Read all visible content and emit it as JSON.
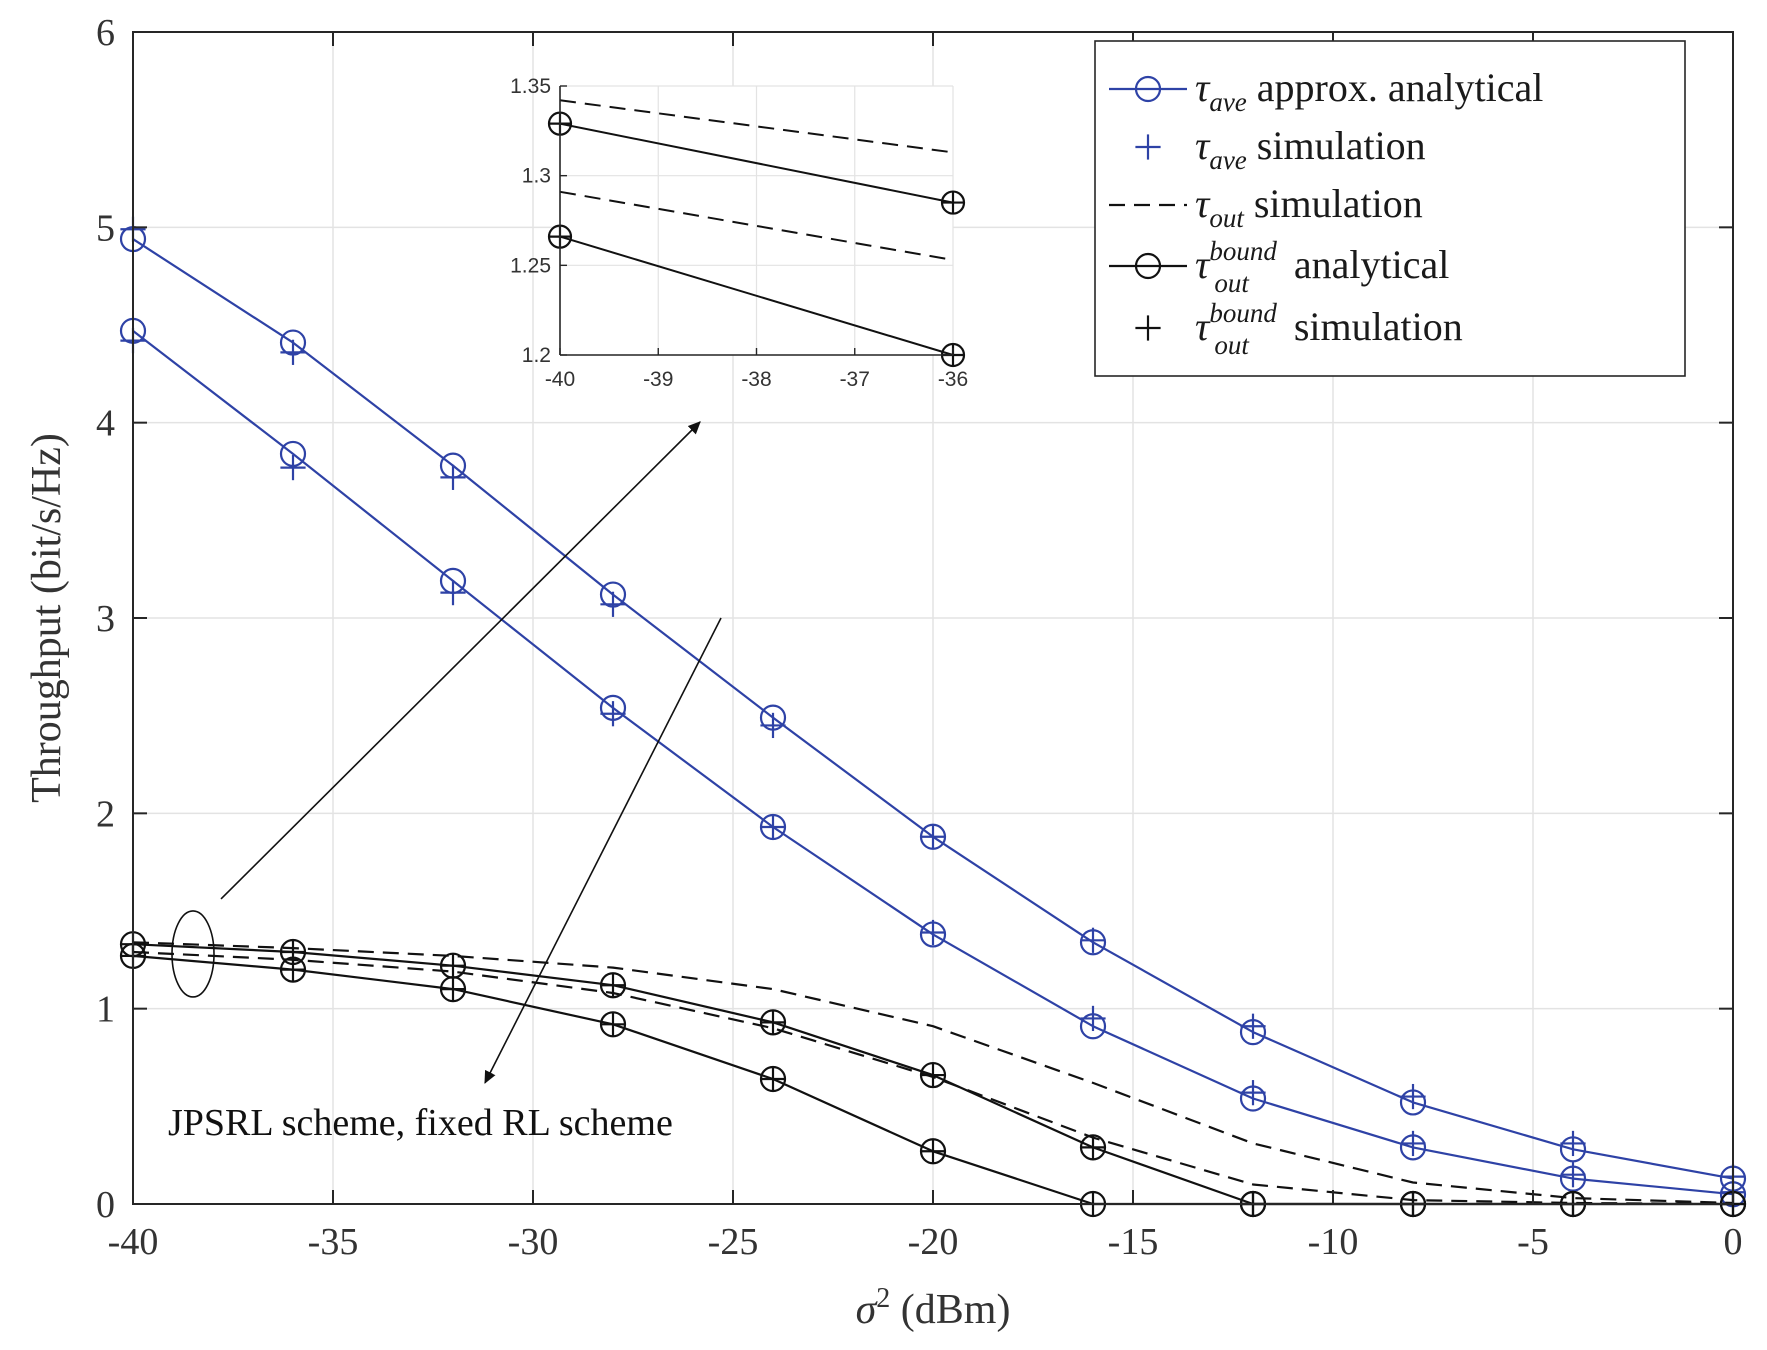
{
  "chart_data": {
    "type": "line",
    "title": "",
    "xlabel": {
      "symbol": "σ",
      "sup": "2",
      "unit": "(dBm)"
    },
    "ylabel": "Throughput (bit/s/Hz)",
    "xlim": [
      -40,
      0
    ],
    "ylim": [
      0,
      6
    ],
    "xticks": [
      -40,
      -35,
      -30,
      -25,
      -20,
      -15,
      -10,
      -5,
      0
    ],
    "yticks": [
      0,
      1,
      2,
      3,
      4,
      5,
      6
    ],
    "grid": true,
    "x": [
      -40,
      -36,
      -32,
      -28,
      -24,
      -20,
      -16,
      -12,
      -8,
      -4,
      0
    ],
    "colors": {
      "blue": "#2e42a6",
      "black": "#111111"
    },
    "series": [
      {
        "name": "tau_ave approx. analytical (upper)",
        "color": "blue",
        "style": "solid",
        "marker": "circle",
        "values": [
          4.94,
          4.41,
          3.78,
          3.12,
          2.49,
          1.88,
          1.34,
          0.88,
          0.52,
          0.28,
          0.13
        ]
      },
      {
        "name": "tau_ave simulation (upper)",
        "color": "blue",
        "style": "none",
        "marker": "plus",
        "values": [
          4.99,
          4.36,
          3.72,
          3.07,
          2.45,
          1.88,
          1.35,
          0.91,
          0.55,
          0.31,
          0.14
        ]
      },
      {
        "name": "tau_ave approx. analytical (lower)",
        "color": "blue",
        "style": "solid",
        "marker": "circle",
        "values": [
          4.47,
          3.84,
          3.19,
          2.54,
          1.93,
          1.38,
          0.91,
          0.54,
          0.29,
          0.13,
          0.05
        ]
      },
      {
        "name": "tau_ave simulation (lower)",
        "color": "blue",
        "style": "none",
        "marker": "plus",
        "values": [
          4.42,
          3.77,
          3.13,
          2.51,
          1.93,
          1.39,
          0.95,
          0.57,
          0.31,
          0.15,
          0.06
        ]
      },
      {
        "name": "tau_out simulation (upper)",
        "color": "black",
        "style": "dashed",
        "marker": "none",
        "values": [
          1.34,
          1.31,
          1.27,
          1.21,
          1.1,
          0.91,
          0.62,
          0.31,
          0.11,
          0.03,
          0.005
        ]
      },
      {
        "name": "tau_out simulation (lower)",
        "color": "black",
        "style": "dashed",
        "marker": "none",
        "values": [
          1.29,
          1.25,
          1.19,
          1.08,
          0.9,
          0.65,
          0.34,
          0.1,
          0.02,
          0.005,
          0.0
        ]
      },
      {
        "name": "tau_out bound analytical (upper)",
        "color": "black",
        "style": "solid",
        "marker": "circle-plus",
        "values": [
          1.33,
          1.29,
          1.22,
          1.12,
          0.93,
          0.66,
          0.29,
          0.0,
          0.0,
          0.0,
          0.0
        ]
      },
      {
        "name": "tau_out bound analytical (lower)",
        "color": "black",
        "style": "solid",
        "marker": "circle-plus",
        "values": [
          1.27,
          1.2,
          1.1,
          0.92,
          0.64,
          0.27,
          0.0,
          0.0,
          0.0,
          0.0,
          0.0
        ]
      }
    ],
    "inset": {
      "xlim": [
        -40,
        -36
      ],
      "ylim": [
        1.2,
        1.35
      ],
      "xticks": [
        -40,
        -39,
        -38,
        -37,
        -36
      ],
      "yticks": [
        1.2,
        1.25,
        1.3,
        1.35
      ],
      "ytick_labels": [
        "1.2",
        "1.25",
        "1.3",
        "1.35"
      ],
      "x": [
        -40,
        -36
      ],
      "series": [
        {
          "name": "tau_out simulation (upper)",
          "color": "black",
          "style": "dashed",
          "marker": "none",
          "values": [
            1.342,
            1.313
          ]
        },
        {
          "name": "tau_out bound analytical (upper)",
          "color": "black",
          "style": "solid",
          "marker": "circle-plus",
          "values": [
            1.329,
            1.285
          ]
        },
        {
          "name": "tau_out simulation (lower)",
          "color": "black",
          "style": "dashed",
          "marker": "none",
          "values": [
            1.291,
            1.253
          ]
        },
        {
          "name": "tau_out bound analytical (lower)",
          "color": "black",
          "style": "solid",
          "marker": "circle-plus",
          "values": [
            1.266,
            1.2
          ]
        }
      ]
    },
    "legend": {
      "placement": "top-right",
      "entries": [
        {
          "sym": "τ",
          "sub": "ave",
          "sup": "",
          "text": "approx. analytical",
          "color": "blue",
          "line": "solid",
          "marker": "circle"
        },
        {
          "sym": "τ",
          "sub": "ave",
          "sup": "",
          "text": "simulation",
          "color": "blue",
          "line": "none",
          "marker": "plus"
        },
        {
          "sym": "τ",
          "sub": "out",
          "sup": "",
          "text": "simulation",
          "color": "black",
          "line": "dashed",
          "marker": "none"
        },
        {
          "sym": "τ",
          "sub": "out",
          "sup": "bound",
          "text": "analytical",
          "color": "black",
          "line": "solid",
          "marker": "circle"
        },
        {
          "sym": "τ",
          "sub": "out",
          "sup": "bound",
          "text": "simulation",
          "color": "black",
          "line": "none",
          "marker": "plus"
        }
      ]
    },
    "annotation": "JPSRL scheme, fixed RL scheme"
  }
}
